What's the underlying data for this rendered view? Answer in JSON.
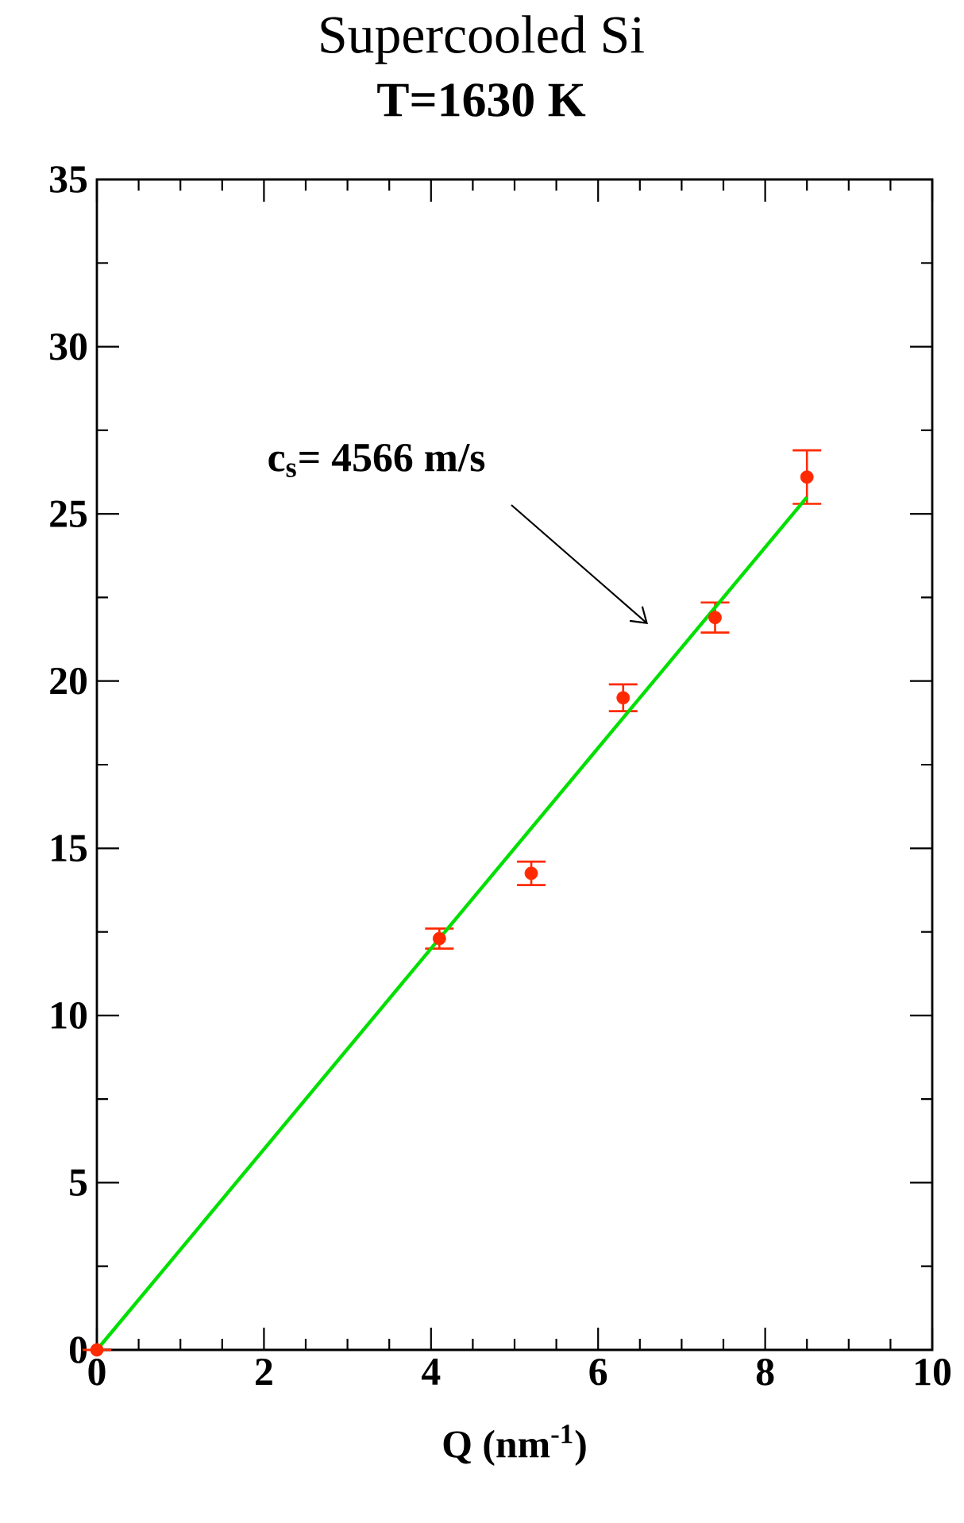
{
  "chart_data": {
    "type": "scatter",
    "title": "Supercooled Si",
    "subtitle": "T=1630 K",
    "xlabel": "Q (nm$^{-1}$)",
    "xlim": [
      0,
      10
    ],
    "ylim": [
      0,
      35
    ],
    "xticks": [
      0,
      2,
      4,
      6,
      8,
      10
    ],
    "yticks": [
      0,
      5,
      10,
      15,
      20,
      25,
      30,
      35
    ],
    "grid": false,
    "series": [
      {
        "color": "#ff2a00",
        "marker": "circle",
        "x": [
          0,
          4.1,
          5.2,
          6.3,
          7.4,
          8.5
        ],
        "values": [
          0,
          12.3,
          14.25,
          19.5,
          21.9,
          26.1
        ],
        "errors": [
          null,
          0.3,
          0.35,
          0.4,
          0.45,
          0.8
        ]
      },
      {
        "type": "line",
        "color": "#00e000",
        "marker": "none",
        "line_style": "solid",
        "x": [
          0,
          8.5
        ],
        "values": [
          0,
          25.5
        ]
      }
    ],
    "annotations": [
      "c$_{s}$= 4566 m/s"
    ]
  }
}
